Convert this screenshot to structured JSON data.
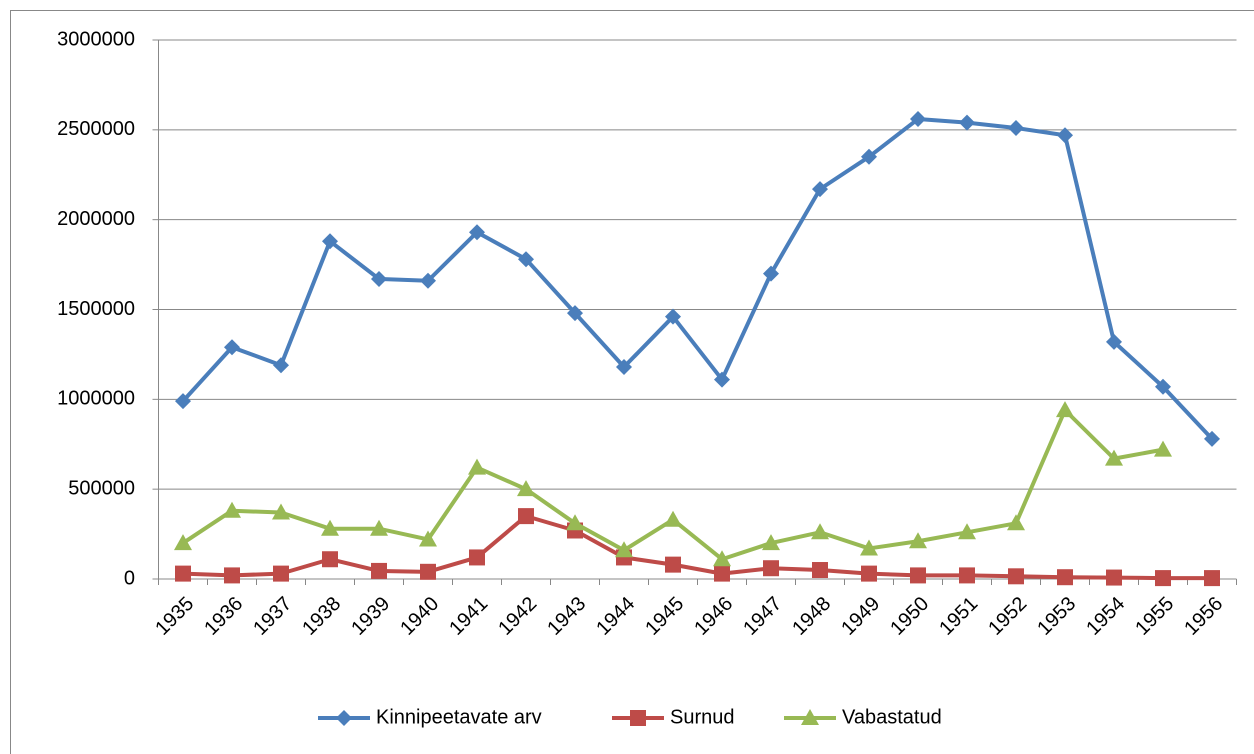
{
  "chart_data": {
    "type": "line",
    "categories": [
      "1935",
      "1936",
      "1937",
      "1938",
      "1939",
      "1940",
      "1941",
      "1942",
      "1943",
      "1944",
      "1945",
      "1946",
      "1947",
      "1948",
      "1949",
      "1950",
      "1951",
      "1952",
      "1953",
      "1954",
      "1955",
      "1956"
    ],
    "series": [
      {
        "name": "Kinnipeetavate arv",
        "color": "#4a7ebb",
        "marker": "diamond",
        "values": [
          990000,
          1290000,
          1190000,
          1880000,
          1670000,
          1660000,
          1930000,
          1780000,
          1480000,
          1180000,
          1460000,
          1110000,
          1700000,
          2170000,
          2350000,
          2560000,
          2540000,
          2510000,
          2470000,
          1320000,
          1070000,
          780000
        ]
      },
      {
        "name": "Surnud",
        "color": "#be4b48",
        "marker": "square",
        "values": [
          30000,
          20000,
          30000,
          110000,
          45000,
          40000,
          120000,
          350000,
          270000,
          120000,
          80000,
          30000,
          60000,
          50000,
          30000,
          20000,
          20000,
          15000,
          10000,
          8000,
          5000,
          5000
        ]
      },
      {
        "name": "Vabastatud",
        "color": "#98b954",
        "marker": "triangle",
        "values": [
          200000,
          380000,
          370000,
          280000,
          280000,
          220000,
          620000,
          500000,
          310000,
          160000,
          330000,
          110000,
          200000,
          260000,
          170000,
          210000,
          260000,
          310000,
          940000,
          670000,
          720000,
          null
        ]
      }
    ],
    "ylim": [
      0,
      3000000
    ],
    "yticks": [
      0,
      500000,
      1000000,
      1500000,
      2000000,
      2500000,
      3000000
    ],
    "grid": true,
    "legend": "bottom"
  }
}
